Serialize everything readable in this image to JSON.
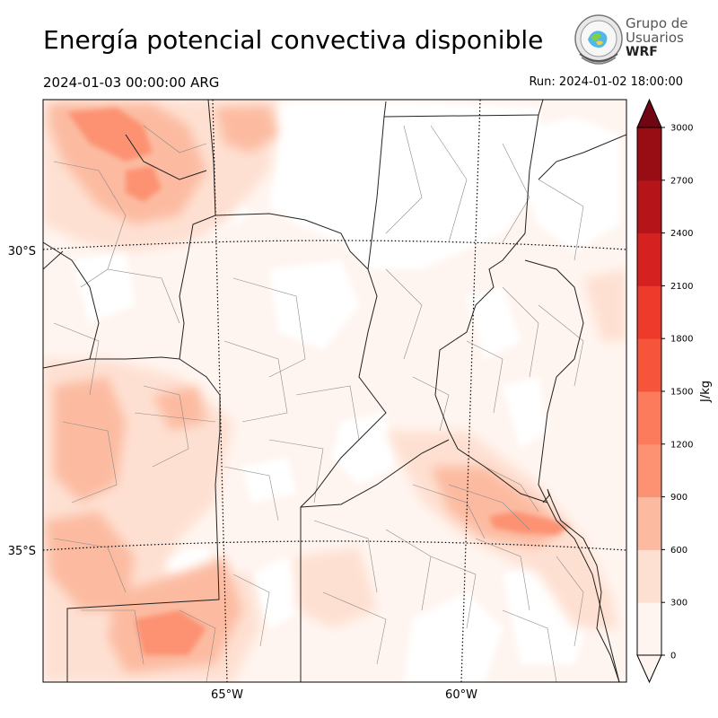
{
  "title": "Energía potencial convectiva disponible",
  "valid_time": "2024-01-03 00:00:00 ARG",
  "run_time": "Run: 2024-01-02 18:00:00",
  "logo": {
    "line1": "Grupo de",
    "line2": "Usuarios",
    "line3": "WRF"
  },
  "map": {
    "lat_labels": [
      "30°S",
      "35°S"
    ],
    "lon_labels": [
      "65°W",
      "60°W"
    ]
  },
  "colorbar": {
    "unit": "J/kg",
    "levels": [
      0,
      300,
      600,
      900,
      1200,
      1500,
      1800,
      2100,
      2400,
      2700,
      3000
    ],
    "colors": [
      "#fff5f0",
      "#fee0d2",
      "#fcbba1",
      "#fc9272",
      "#fb7b5c",
      "#f6553c",
      "#ee3a2b",
      "#d52221",
      "#b51419",
      "#980c13",
      "#6f0612"
    ],
    "tick_labels": [
      "0",
      "300",
      "600",
      "900",
      "1200",
      "1500",
      "1800",
      "2100",
      "2400",
      "2700",
      "3000"
    ]
  }
}
